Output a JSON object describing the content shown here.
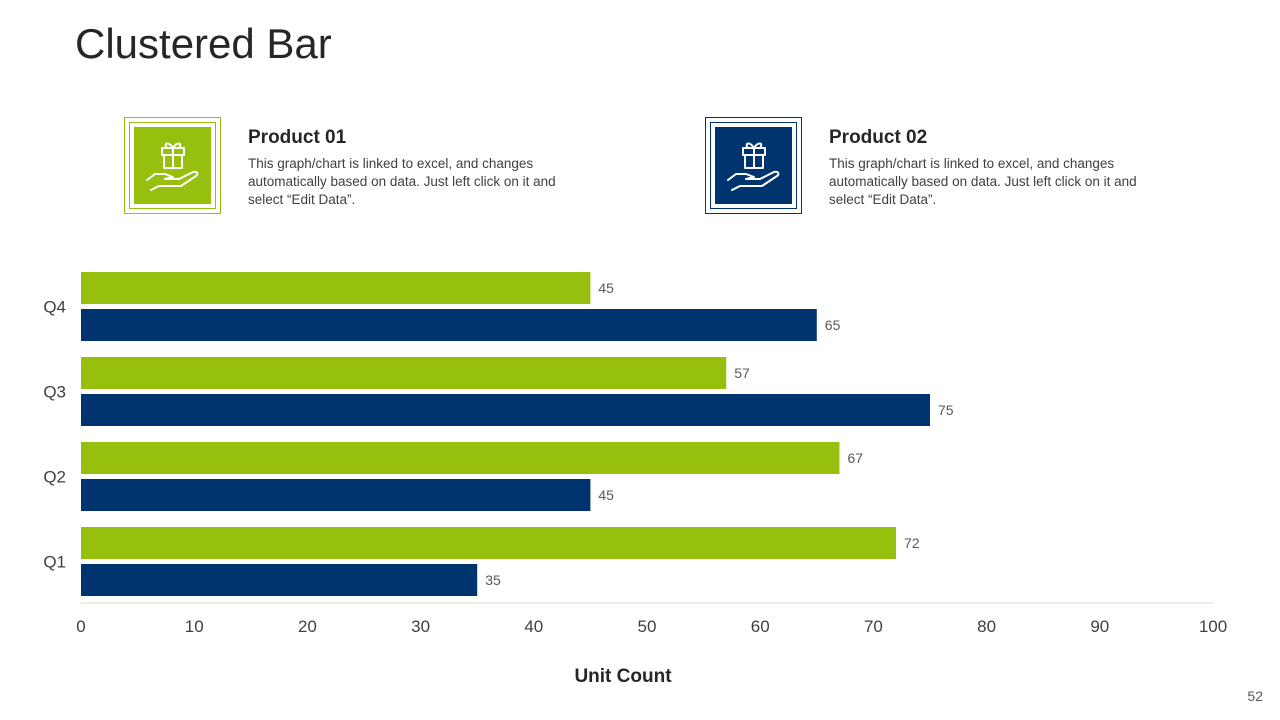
{
  "slide": {
    "title": "Clustered Bar",
    "page_number": "52"
  },
  "legend": [
    {
      "name": "Product 01",
      "description": "This graph/chart is linked to excel, and changes automatically based on data. Just left click on it and select “Edit Data”.",
      "color": "#97BF0D",
      "icon": "gift-in-hand-icon"
    },
    {
      "name": "Product 02",
      "description": "This graph/chart is linked to excel, and changes automatically based on data. Just left click on it and select “Edit Data”.",
      "color": "#00346E",
      "icon": "gift-in-hand-icon"
    }
  ],
  "chart_data": {
    "type": "bar",
    "orientation": "horizontal",
    "categories": [
      "Q1",
      "Q2",
      "Q3",
      "Q4"
    ],
    "series": [
      {
        "name": "Product 01",
        "color": "#97BF0D",
        "values": [
          72,
          67,
          57,
          45
        ]
      },
      {
        "name": "Product 02",
        "color": "#00346E",
        "values": [
          35,
          45,
          75,
          65
        ]
      }
    ],
    "xlabel": "Unit Count",
    "ylabel": "",
    "xlim": [
      0,
      100
    ],
    "xticks": [
      0,
      10,
      20,
      30,
      40,
      50,
      60,
      70,
      80,
      90,
      100
    ],
    "grid": false,
    "data_labels": true
  }
}
